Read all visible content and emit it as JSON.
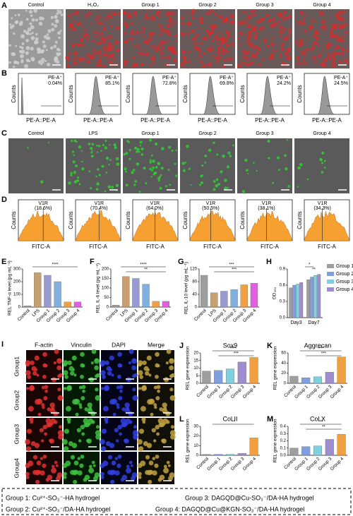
{
  "panel_a": {
    "label": "A",
    "titles": [
      "Control",
      "H₂O₂",
      "Group 1",
      "Group 2",
      "Group 3",
      "Group 4"
    ]
  },
  "panel_b": {
    "label": "B",
    "marker": "PE-A⁺",
    "percents": [
      "0.04%",
      "85.1%",
      "72.8%",
      "69.8%",
      "24.2%",
      "24.5%"
    ],
    "x_label": "PE-A::PE-A",
    "y_label": "Counts"
  },
  "panel_c": {
    "label": "C",
    "titles": [
      "Control",
      "LPS",
      "Group 1",
      "Group 2",
      "Group 3",
      "Group 4"
    ]
  },
  "panel_d": {
    "label": "D",
    "marker": "V1R",
    "percents": [
      "(18.6%)",
      "(70.4%)",
      "(64.0%)",
      "(50.5%)",
      "(38.1%)",
      "(34.3%)"
    ],
    "x_label": "FITC-A",
    "y_label": "Counts"
  },
  "panel_i": {
    "label": "I",
    "columns": [
      "F-actin",
      "Vinculin",
      "DAPI",
      "Merge"
    ],
    "rows": [
      "Group1",
      "Group2",
      "Group3",
      "Group4"
    ]
  },
  "legend_box": [
    "Group 1: Cu²⁺-SO₃⁻-HA hydrogel",
    "Group 2: Cu²⁺-SO₃⁻/DA-HA hydrogel",
    "Group 3: DAGQD@Cu-SO₃⁻/DA-HA hydrogel",
    "Group 4: DAGQD@Cu@KGN-SO₃⁻/DA-HA hydrogel"
  ],
  "chart_data": [
    {
      "type": "bar",
      "label": "E",
      "y_label": "REL TNF-α level (pg mL⁻¹)",
      "categories": [
        "Control",
        "LPS",
        "Group 1",
        "Group 2",
        "Group 3",
        "Group 4"
      ],
      "values": [
        10,
        270,
        250,
        200,
        40,
        40
      ],
      "colors": [
        "#9e9e9e",
        "#c8a06e",
        "#9a9ad2",
        "#7fb0e0",
        "#f0a040",
        "#e060e0"
      ],
      "ylim": [
        0,
        300
      ],
      "yticks": [
        0,
        100,
        200,
        300
      ],
      "annotations": [
        "****"
      ]
    },
    {
      "type": "bar",
      "label": "F",
      "y_label": "REL IL-6 level (pg mL⁻¹)",
      "categories": [
        "Control",
        "LPS",
        "Group 1",
        "Group 2",
        "Group 3",
        "Group 4"
      ],
      "values": [
        10,
        160,
        150,
        120,
        30,
        30
      ],
      "colors": [
        "#9e9e9e",
        "#c8a06e",
        "#9a9ad2",
        "#7fb0e0",
        "#f0a040",
        "#e060e0"
      ],
      "ylim": [
        0,
        200
      ],
      "yticks": [
        0,
        50,
        100,
        150,
        200
      ],
      "annotations": [
        "****",
        "**"
      ]
    },
    {
      "type": "bar",
      "label": "G",
      "y_label": "REL IL-10 level (pg mL⁻¹)",
      "categories": [
        "Control",
        "LPS",
        "Group 1",
        "Group 2",
        "Group 3",
        "Group 4"
      ],
      "values": [
        100,
        45,
        50,
        55,
        70,
        75
      ],
      "colors": [
        "#9e9e9e",
        "#c8a06e",
        "#9a9ad2",
        "#7fb0e0",
        "#f0a040",
        "#e060e0"
      ],
      "ylim": [
        0,
        120
      ],
      "yticks": [
        0,
        40,
        80,
        120
      ],
      "annotations": [
        "***",
        "***"
      ]
    },
    {
      "type": "grouped_bar",
      "label": "H",
      "y_label": "OD₄₅₀",
      "categories": [
        "Day3",
        "Day7"
      ],
      "series": [
        {
          "name": "Group 1",
          "color": "#9e9e9e",
          "values": [
            0.55,
            0.7
          ]
        },
        {
          "name": "Group 2",
          "color": "#7f9fe0",
          "values": [
            0.6,
            0.75
          ]
        },
        {
          "name": "Group 3",
          "color": "#80d0e0",
          "values": [
            0.62,
            0.78
          ]
        },
        {
          "name": "Group 4",
          "color": "#a08cd0",
          "values": [
            0.65,
            0.8
          ]
        }
      ],
      "ylim": [
        0,
        0.9
      ],
      "yticks": [
        {
          "value": 0,
          "label": "0.0"
        },
        0.3,
        0.6,
        0.9
      ],
      "annotations": [
        "*",
        "**"
      ]
    },
    {
      "type": "bar",
      "label": "J",
      "title": "Sox9",
      "y_label": "REL gene expression",
      "categories": [
        "Control",
        "Group 1",
        "Group 2",
        "Group 3",
        "Group 4"
      ],
      "values": [
        8,
        8.5,
        9.5,
        14,
        17
      ],
      "colors": [
        "#9e9e9e",
        "#7f9fe0",
        "#80d0e0",
        "#a08cd0",
        "#f0a040"
      ],
      "ylim": [
        0,
        20
      ],
      "yticks": [
        0,
        5,
        10,
        15,
        20
      ],
      "annotations": [
        "****",
        "***"
      ]
    },
    {
      "type": "bar",
      "label": "K",
      "title": "Aggrecan",
      "y_label": "REL gene expression",
      "categories": [
        "Control",
        "Group 1",
        "Group 2",
        "Group 3",
        "Group 4"
      ],
      "values": [
        14,
        11,
        13,
        22,
        52
      ],
      "colors": [
        "#9e9e9e",
        "#7f9fe0",
        "#80d0e0",
        "#a08cd0",
        "#f0a040"
      ],
      "ylim": [
        0,
        60
      ],
      "yticks": [
        0,
        20,
        40,
        60
      ],
      "annotations": [
        "****",
        "***"
      ]
    },
    {
      "type": "bar",
      "label": "L",
      "title": "Col II",
      "y_label": "REL gene expression",
      "categories": [
        "Control",
        "Group 1",
        "Group 2",
        "Group 3",
        "Group 4"
      ],
      "values": [
        1,
        1,
        1,
        2,
        18
      ],
      "colors": [
        "#9e9e9e",
        "#7f9fe0",
        "#80d0e0",
        "#a08cd0",
        "#f0a040"
      ],
      "ylim": [
        0,
        30
      ],
      "yticks": [
        0,
        10,
        20,
        30
      ],
      "annotations": [
        "**"
      ]
    },
    {
      "type": "bar",
      "label": "M",
      "title": "Col X",
      "y_label": "REL gene expression",
      "categories": [
        "Control",
        "Group 1",
        "Group 2",
        "Group 3",
        "Group 4"
      ],
      "values": [
        0.1,
        0.12,
        0.13,
        0.22,
        0.29
      ],
      "colors": [
        "#9e9e9e",
        "#7f9fe0",
        "#80d0e0",
        "#a08cd0",
        "#f0a040"
      ],
      "ylim": [
        0,
        0.4
      ],
      "yticks": [
        {
          "value": 0,
          "label": "0.0"
        },
        0.1,
        0.2,
        0.3,
        0.4
      ],
      "annotations": [
        "***",
        "**"
      ]
    }
  ]
}
